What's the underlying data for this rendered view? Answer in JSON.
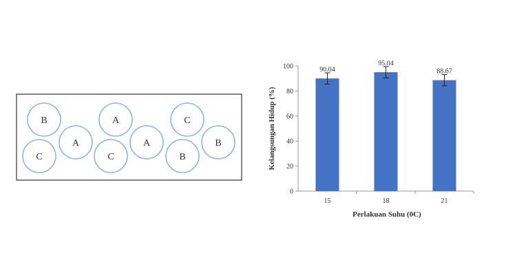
{
  "diagram": {
    "circles": [
      {
        "label": "B"
      },
      {
        "label": "A"
      },
      {
        "label": "C"
      },
      {
        "label": "A"
      },
      {
        "label": "A"
      },
      {
        "label": "B"
      },
      {
        "label": "C"
      },
      {
        "label": "C"
      },
      {
        "label": "B"
      }
    ],
    "circle_color": "#8fb4e3",
    "border_color": "#333333"
  },
  "chart_data": {
    "type": "bar",
    "categories": [
      "15",
      "18",
      "21"
    ],
    "values": [
      90.04,
      95.04,
      88.67
    ],
    "value_labels": [
      "90.04",
      "95.04",
      "88.67"
    ],
    "error": [
      4.5,
      4.5,
      4.5
    ],
    "xlabel": "Perlakuan Suhu (0C)",
    "ylabel": "Kelangsungan Hidup (%)",
    "ylim": [
      0,
      100
    ],
    "yticks": [
      0,
      20,
      40,
      60,
      80,
      100
    ],
    "bar_color": "#4472c4",
    "grid": false,
    "legend": "none"
  }
}
